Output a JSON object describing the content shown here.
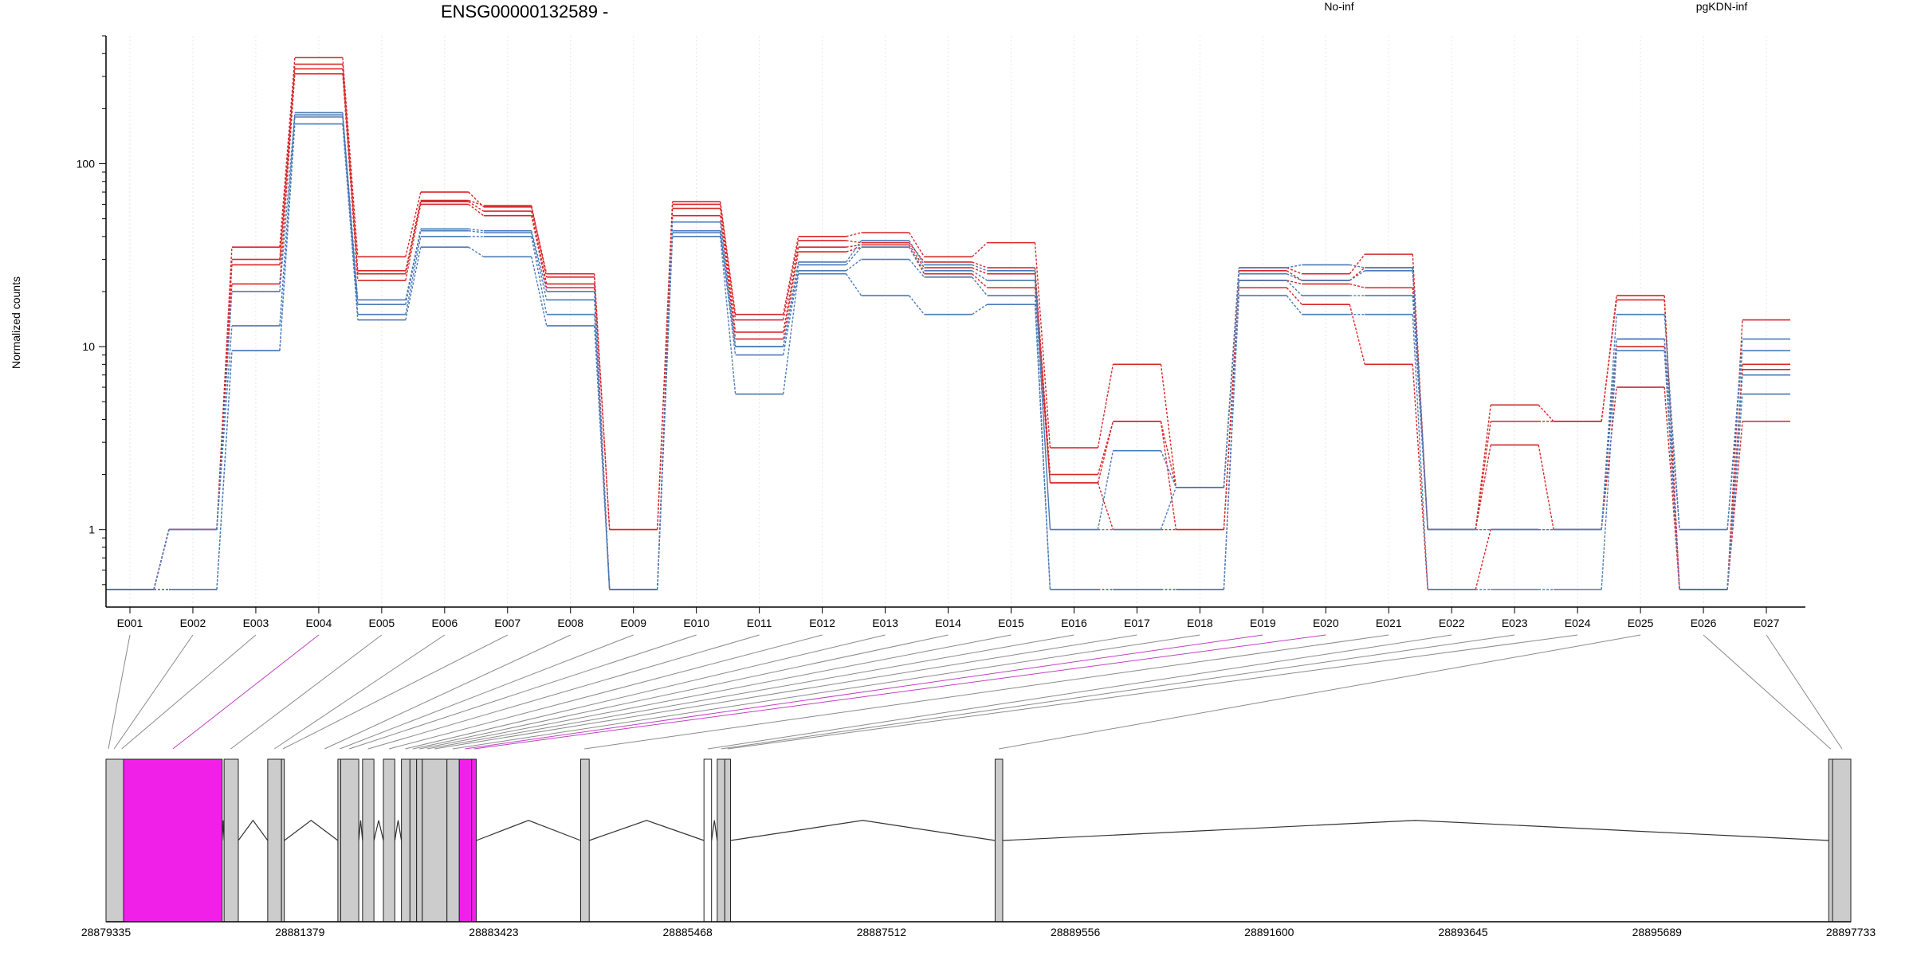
{
  "chart_data": {
    "type": "line",
    "title": "ENSG00000132589 -",
    "ylabel": "Normalized counts",
    "xlabel": "",
    "yscale": "log",
    "ylim": [
      0.47,
      500
    ],
    "yticks": [
      1,
      10,
      100
    ],
    "ytick_labels": [
      "1",
      "10",
      "100"
    ],
    "grid": "vertical dotted",
    "legend": "top-right",
    "categories": [
      "E001",
      "E002",
      "E003",
      "E004",
      "E005",
      "E006",
      "E007",
      "E008",
      "E009",
      "E010",
      "E011",
      "E012",
      "E013",
      "E014",
      "E015",
      "E016",
      "E017",
      "E018",
      "E019",
      "E020",
      "E021",
      "E022",
      "E023",
      "E024",
      "E025",
      "E026",
      "E027"
    ],
    "series": [
      {
        "name": "No-inf",
        "color": "#d62728",
        "samples": [
          [
            0.47,
            1.0,
            35,
            380,
            31,
            70,
            58,
            25,
            1.0,
            62,
            15,
            40,
            42,
            31,
            37,
            2.8,
            8.0,
            1.7,
            27,
            25,
            32,
            1.0,
            4.8,
            3.9,
            19,
            0.47,
            14
          ],
          [
            0.47,
            1.0,
            30,
            350,
            26,
            63,
            59,
            24,
            1.0,
            60,
            14,
            38,
            37,
            29,
            27,
            2.0,
            3.9,
            1.7,
            26,
            23,
            27,
            1.0,
            3.9,
            3.9,
            18,
            0.47,
            8
          ],
          [
            0.47,
            1.0,
            28,
            330,
            25,
            62,
            55,
            22,
            0.47,
            57,
            12,
            35,
            36,
            27,
            25,
            1.8,
            3.9,
            1.0,
            23,
            22,
            21,
            1.0,
            2.9,
            1.0,
            10,
            0.47,
            7.5
          ],
          [
            0.47,
            1.0,
            22,
            310,
            23,
            60,
            52,
            21,
            0.47,
            52,
            11,
            33,
            35,
            25,
            21,
            1.8,
            1.0,
            1.0,
            21,
            17,
            8.0,
            0.47,
            1.0,
            1.0,
            6.0,
            0.47,
            3.9
          ]
        ]
      },
      {
        "name": "pgKDN-inf",
        "color": "#4a7ab7",
        "samples": [
          [
            0.47,
            1.0,
            20,
            190,
            18,
            44,
            43,
            20,
            0.47,
            48,
            10,
            29,
            38,
            28,
            26,
            1.0,
            2.7,
            1.7,
            27,
            28,
            27,
            1.0,
            1.0,
            1.0,
            15,
            1.0,
            11
          ],
          [
            0.47,
            1.0,
            13,
            185,
            17,
            43,
            42,
            18,
            0.47,
            43,
            10,
            28,
            35,
            26,
            23,
            1.0,
            1.0,
            1.7,
            25,
            23,
            26,
            1.0,
            1.0,
            1.0,
            11,
            1.0,
            9.5
          ],
          [
            0.47,
            0.47,
            9.5,
            180,
            15,
            40,
            40,
            15,
            0.47,
            42,
            9,
            26,
            30,
            24,
            19,
            0.47,
            0.47,
            0.47,
            23,
            19,
            19,
            1.0,
            1.0,
            1.0,
            11,
            0.47,
            7
          ],
          [
            0.47,
            0.47,
            9.5,
            165,
            14,
            35,
            31,
            13,
            0.47,
            40,
            5.5,
            25,
            19,
            15,
            17,
            0.47,
            0.47,
            0.47,
            19,
            15,
            15,
            0.47,
            0.47,
            0.47,
            9.5,
            0.47,
            5.5
          ]
        ]
      }
    ]
  },
  "gene_model": {
    "coordinates": [
      "28879335",
      "28881379",
      "28883423",
      "28885468",
      "28887512",
      "28889556",
      "28891600",
      "28893645",
      "28895689",
      "28897733"
    ],
    "axis_start": 28879335,
    "axis_end": 28897733,
    "highlight_color": "#f020e8",
    "exon_color": "#cccccc",
    "exons": [
      {
        "start": 28879335,
        "end": 28879520,
        "fill": "grey"
      },
      {
        "start": 28879520,
        "end": 28880560,
        "fill": "highlight"
      },
      {
        "start": 28880580,
        "end": 28880730,
        "fill": "grey"
      },
      {
        "start": 28881040,
        "end": 28881185,
        "fill": "grey"
      },
      {
        "start": 28881185,
        "end": 28881215,
        "fill": "grey"
      },
      {
        "start": 28881780,
        "end": 28881810,
        "fill": "grey"
      },
      {
        "start": 28881810,
        "end": 28882000,
        "fill": "grey"
      },
      {
        "start": 28882040,
        "end": 28882160,
        "fill": "grey"
      },
      {
        "start": 28882260,
        "end": 28882380,
        "fill": "grey"
      },
      {
        "start": 28882450,
        "end": 28882540,
        "fill": "grey"
      },
      {
        "start": 28882540,
        "end": 28882610,
        "fill": "grey"
      },
      {
        "start": 28882610,
        "end": 28882670,
        "fill": "grey"
      },
      {
        "start": 28882670,
        "end": 28882930,
        "fill": "grey"
      },
      {
        "start": 28882930,
        "end": 28883060,
        "fill": "grey"
      },
      {
        "start": 28883060,
        "end": 28883190,
        "fill": "highlight"
      },
      {
        "start": 28883190,
        "end": 28883240,
        "fill": "highlight"
      },
      {
        "start": 28884340,
        "end": 28884430,
        "fill": "grey"
      },
      {
        "start": 28885640,
        "end": 28885720,
        "fill": "white"
      },
      {
        "start": 28885780,
        "end": 28885860,
        "fill": "grey"
      },
      {
        "start": 28885860,
        "end": 28885920,
        "fill": "grey"
      },
      {
        "start": 28888710,
        "end": 28888790,
        "fill": "grey"
      },
      {
        "start": 28897500,
        "end": 28897540,
        "fill": "grey"
      },
      {
        "start": 28897540,
        "end": 28897733,
        "fill": "grey"
      }
    ],
    "introns": [
      {
        "start": 28880560,
        "end": 28880580,
        "peak": 0.55
      },
      {
        "start": 28880730,
        "end": 28881040,
        "peak": 0.55
      },
      {
        "start": 28881215,
        "end": 28881780,
        "peak": 0.55
      },
      {
        "start": 28882000,
        "end": 28882040,
        "peak": 0.55
      },
      {
        "start": 28882160,
        "end": 28882260,
        "peak": 0.55
      },
      {
        "start": 28882380,
        "end": 28882450,
        "peak": 0.55
      },
      {
        "start": 28883240,
        "end": 28884340,
        "peak": 0.55
      },
      {
        "start": 28884430,
        "end": 28885640,
        "peak": 0.55
      },
      {
        "start": 28885720,
        "end": 28885780,
        "peak": 0.55
      },
      {
        "start": 28885920,
        "end": 28888710,
        "peak": 0.55
      },
      {
        "start": 28888790,
        "end": 28897500,
        "peak": 0.55
      }
    ],
    "connectors": [
      {
        "category": "E001",
        "genomic": 28879360,
        "highlight": false
      },
      {
        "category": "E002",
        "genomic": 28879420,
        "highlight": false
      },
      {
        "category": "E003",
        "genomic": 28879500,
        "highlight": false
      },
      {
        "category": "E004",
        "genomic": 28880040,
        "highlight": true
      },
      {
        "category": "E005",
        "genomic": 28880650,
        "highlight": false
      },
      {
        "category": "E006",
        "genomic": 28881110,
        "highlight": false
      },
      {
        "category": "E007",
        "genomic": 28881200,
        "highlight": false
      },
      {
        "category": "E008",
        "genomic": 28881640,
        "highlight": false
      },
      {
        "category": "E009",
        "genomic": 28881800,
        "highlight": false
      },
      {
        "category": "E010",
        "genomic": 28881900,
        "highlight": false
      },
      {
        "category": "E011",
        "genomic": 28882100,
        "highlight": false
      },
      {
        "category": "E012",
        "genomic": 28882320,
        "highlight": false
      },
      {
        "category": "E013",
        "genomic": 28882490,
        "highlight": false
      },
      {
        "category": "E014",
        "genomic": 28882570,
        "highlight": false
      },
      {
        "category": "E015",
        "genomic": 28882640,
        "highlight": false
      },
      {
        "category": "E016",
        "genomic": 28882720,
        "highlight": false
      },
      {
        "category": "E017",
        "genomic": 28882800,
        "highlight": false
      },
      {
        "category": "E018",
        "genomic": 28882990,
        "highlight": false
      },
      {
        "category": "E019",
        "genomic": 28883120,
        "highlight": true
      },
      {
        "category": "E020",
        "genomic": 28883215,
        "highlight": true
      },
      {
        "category": "E021",
        "genomic": 28884380,
        "highlight": false
      },
      {
        "category": "E022",
        "genomic": 28885680,
        "highlight": false
      },
      {
        "category": "E023",
        "genomic": 28885820,
        "highlight": false
      },
      {
        "category": "E024",
        "genomic": 28885890,
        "highlight": false
      },
      {
        "category": "E025",
        "genomic": 28888750,
        "highlight": false
      },
      {
        "category": "E026",
        "genomic": 28897520,
        "highlight": false
      },
      {
        "category": "E027",
        "genomic": 28897640,
        "highlight": false
      }
    ]
  }
}
